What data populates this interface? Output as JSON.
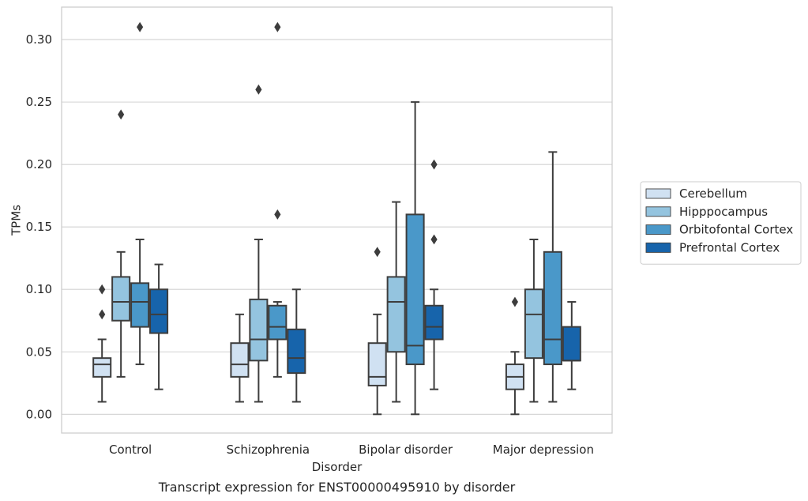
{
  "chart_data": {
    "type": "boxplot",
    "title": "",
    "caption": "Transcript expression for ENST00000495910 by disorder",
    "xlabel": "Disorder",
    "ylabel": "TPMs",
    "ylim": [
      -0.015,
      0.326
    ],
    "yticks": [
      "0.00",
      "0.05",
      "0.10",
      "0.15",
      "0.20",
      "0.25",
      "0.30"
    ],
    "grid": true,
    "legend_position": "right",
    "categories": [
      "Control",
      "Schizophrenia",
      "Bipolar disorder",
      "Major depression"
    ],
    "series": [
      {
        "name": "Cerebellum",
        "color": "#d0e1f2",
        "boxes": [
          {
            "whislo": 0.01,
            "q1": 0.03,
            "med": 0.04,
            "q3": 0.045,
            "whishi": 0.06,
            "fliers": [
              0.08,
              0.1
            ]
          },
          {
            "whislo": 0.01,
            "q1": 0.03,
            "med": 0.04,
            "q3": 0.057,
            "whishi": 0.08,
            "fliers": []
          },
          {
            "whislo": 0.0,
            "q1": 0.023,
            "med": 0.03,
            "q3": 0.057,
            "whishi": 0.08,
            "fliers": [
              0.13
            ]
          },
          {
            "whislo": 0.0,
            "q1": 0.02,
            "med": 0.03,
            "q3": 0.04,
            "whishi": 0.05,
            "fliers": [
              0.09
            ]
          }
        ]
      },
      {
        "name": "Hipppocampus",
        "color": "#94c4df",
        "boxes": [
          {
            "whislo": 0.03,
            "q1": 0.075,
            "med": 0.09,
            "q3": 0.11,
            "whishi": 0.13,
            "fliers": [
              0.24
            ]
          },
          {
            "whislo": 0.01,
            "q1": 0.043,
            "med": 0.06,
            "q3": 0.092,
            "whishi": 0.14,
            "fliers": [
              0.26
            ]
          },
          {
            "whislo": 0.01,
            "q1": 0.05,
            "med": 0.09,
            "q3": 0.11,
            "whishi": 0.17,
            "fliers": []
          },
          {
            "whislo": 0.01,
            "q1": 0.045,
            "med": 0.08,
            "q3": 0.1,
            "whishi": 0.14,
            "fliers": []
          }
        ]
      },
      {
        "name": "Orbitofontal Cortex",
        "color": "#4a98c9",
        "boxes": [
          {
            "whislo": 0.04,
            "q1": 0.07,
            "med": 0.09,
            "q3": 0.105,
            "whishi": 0.14,
            "fliers": [
              0.31
            ]
          },
          {
            "whislo": 0.03,
            "q1": 0.06,
            "med": 0.07,
            "q3": 0.087,
            "whishi": 0.09,
            "fliers": [
              0.16,
              0.31
            ]
          },
          {
            "whislo": 0.0,
            "q1": 0.04,
            "med": 0.055,
            "q3": 0.16,
            "whishi": 0.25,
            "fliers": []
          },
          {
            "whislo": 0.01,
            "q1": 0.04,
            "med": 0.06,
            "q3": 0.13,
            "whishi": 0.21,
            "fliers": []
          }
        ]
      },
      {
        "name": "Prefrontal Cortex",
        "color": "#1764ab",
        "boxes": [
          {
            "whislo": 0.02,
            "q1": 0.065,
            "med": 0.08,
            "q3": 0.1,
            "whishi": 0.12,
            "fliers": []
          },
          {
            "whislo": 0.01,
            "q1": 0.033,
            "med": 0.045,
            "q3": 0.068,
            "whishi": 0.1,
            "fliers": []
          },
          {
            "whislo": 0.02,
            "q1": 0.06,
            "med": 0.07,
            "q3": 0.087,
            "whishi": 0.1,
            "fliers": [
              0.14,
              0.2
            ]
          },
          {
            "whislo": 0.02,
            "q1": 0.043,
            "med": 0.043,
            "q3": 0.07,
            "whishi": 0.09,
            "fliers": []
          }
        ]
      }
    ]
  }
}
